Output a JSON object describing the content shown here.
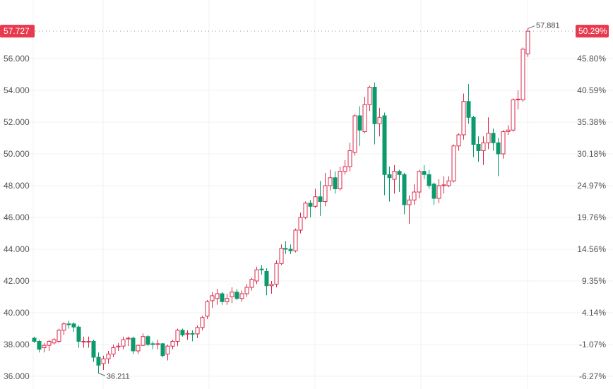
{
  "chart_data": {
    "type": "candlestick",
    "title": "",
    "colors": {
      "up": "#d9284b",
      "down": "#0b9a6c",
      "grid": "#f0f0f0",
      "last_price_tag": "#e8394f"
    },
    "up_style": "hollow",
    "down_style": "filled",
    "ylim": [
      36,
      58
    ],
    "grid": true,
    "left_ticks": [
      "36.000",
      "38.000",
      "40.000",
      "42.000",
      "44.000",
      "46.000",
      "48.000",
      "50.000",
      "52.000",
      "54.000",
      "56.000"
    ],
    "left_tick_values": [
      36,
      38,
      40,
      42,
      44,
      46,
      48,
      50,
      52,
      54,
      56
    ],
    "right_ticks": [
      "-6.27%",
      "-1.07%",
      "4.14%",
      "9.35%",
      "14.56%",
      "19.76%",
      "24.97%",
      "30.18%",
      "35.38%",
      "40.59%",
      "45.80%"
    ],
    "last_price": "57.727",
    "last_price_value": 57.727,
    "last_change": "50.29%",
    "high_label": "57.881",
    "low_label": "36.211",
    "high_value": 57.881,
    "low_value": 36.211,
    "candles_ohlc": [
      [
        38.4,
        38.5,
        38.1,
        38.2
      ],
      [
        38.2,
        38.3,
        37.5,
        37.7
      ],
      [
        37.8,
        38.1,
        37.5,
        37.95
      ],
      [
        37.95,
        38.3,
        37.6,
        38.2
      ],
      [
        38.1,
        38.4,
        38.0,
        38.3
      ],
      [
        38.2,
        39.0,
        38.1,
        38.9
      ],
      [
        38.9,
        39.4,
        38.6,
        39.3
      ],
      [
        39.3,
        39.5,
        39.0,
        39.25
      ],
      [
        39.3,
        39.4,
        38.8,
        39.1
      ],
      [
        39.1,
        39.2,
        37.8,
        38.2
      ],
      [
        38.15,
        38.5,
        37.8,
        38.2
      ],
      [
        38.15,
        38.5,
        37.8,
        38.2
      ],
      [
        38.2,
        38.3,
        36.9,
        37.2
      ],
      [
        37.2,
        37.5,
        36.211,
        36.7
      ],
      [
        36.8,
        37.3,
        36.4,
        37.1
      ],
      [
        37.1,
        37.6,
        36.8,
        37.4
      ],
      [
        37.4,
        38.0,
        37.2,
        37.8
      ],
      [
        37.85,
        38.1,
        37.6,
        37.9
      ],
      [
        37.9,
        38.5,
        37.7,
        38.3
      ],
      [
        38.35,
        38.5,
        37.9,
        38.4
      ],
      [
        38.4,
        38.5,
        37.4,
        37.6
      ],
      [
        37.6,
        38.0,
        37.4,
        37.95
      ],
      [
        37.95,
        38.7,
        37.9,
        38.5
      ],
      [
        38.5,
        38.6,
        37.9,
        38.0
      ],
      [
        38.05,
        38.2,
        37.7,
        38.0
      ],
      [
        38.0,
        38.3,
        37.7,
        38.05
      ],
      [
        38.05,
        38.1,
        37.2,
        37.3
      ],
      [
        37.4,
        38.0,
        37.0,
        37.9
      ],
      [
        37.9,
        38.3,
        37.7,
        38.2
      ],
      [
        38.2,
        39.0,
        37.9,
        38.9
      ],
      [
        38.9,
        39.0,
        38.5,
        38.6
      ],
      [
        38.65,
        38.9,
        38.3,
        38.7
      ],
      [
        38.7,
        38.9,
        38.2,
        38.65
      ],
      [
        38.67,
        39.2,
        38.4,
        39.07
      ],
      [
        39.07,
        39.8,
        38.9,
        39.7
      ],
      [
        39.78,
        40.8,
        39.6,
        40.7
      ],
      [
        40.76,
        41.3,
        40.3,
        41.07
      ],
      [
        40.9,
        41.5,
        40.5,
        41.2
      ],
      [
        41.2,
        41.3,
        40.5,
        40.7
      ],
      [
        40.7,
        41.2,
        40.5,
        40.9
      ],
      [
        41.0,
        41.6,
        40.6,
        41.3
      ],
      [
        41.3,
        41.5,
        40.8,
        40.9
      ],
      [
        40.9,
        41.4,
        40.7,
        41.2
      ],
      [
        41.2,
        41.8,
        41.0,
        41.6
      ],
      [
        41.6,
        42.2,
        41.4,
        42.1
      ],
      [
        42.0,
        42.9,
        41.8,
        42.7
      ],
      [
        42.75,
        43.0,
        42.4,
        42.7
      ],
      [
        42.6,
        42.8,
        41.1,
        41.7
      ],
      [
        41.7,
        42.0,
        41.2,
        41.8
      ],
      [
        41.8,
        43.3,
        41.6,
        43.1
      ],
      [
        43.1,
        44.3,
        43.0,
        44.05
      ],
      [
        44.05,
        44.5,
        43.7,
        44.0
      ],
      [
        44.0,
        44.3,
        43.7,
        43.9
      ],
      [
        43.9,
        45.3,
        43.8,
        45.2
      ],
      [
        45.2,
        46.3,
        45.0,
        46.0
      ],
      [
        46.0,
        47.0,
        45.9,
        46.9
      ],
      [
        46.9,
        47.1,
        46.0,
        46.7
      ],
      [
        46.7,
        47.8,
        46.6,
        47.3
      ],
      [
        47.3,
        48.3,
        46.1,
        47.0
      ],
      [
        47.0,
        48.8,
        46.7,
        48.0
      ],
      [
        48.0,
        49.0,
        47.7,
        48.5
      ],
      [
        48.5,
        48.9,
        47.5,
        47.8
      ],
      [
        47.8,
        49.2,
        47.7,
        48.9
      ],
      [
        48.9,
        49.6,
        48.7,
        49.2
      ],
      [
        49.2,
        50.7,
        48.9,
        50.2
      ],
      [
        50.1,
        52.5,
        49.9,
        52.4
      ],
      [
        52.4,
        53.0,
        50.5,
        51.5
      ],
      [
        51.4,
        53.6,
        51.3,
        53.1
      ],
      [
        53.1,
        54.3,
        52.7,
        54.2
      ],
      [
        54.2,
        54.5,
        50.6,
        51.9
      ],
      [
        51.9,
        52.9,
        51.1,
        52.3
      ],
      [
        52.4,
        52.6,
        47.4,
        48.7
      ],
      [
        48.7,
        49.2,
        47.0,
        48.5
      ],
      [
        48.4,
        49.3,
        47.5,
        48.9
      ],
      [
        48.9,
        49.0,
        47.6,
        48.7
      ],
      [
        48.7,
        48.8,
        46.2,
        46.8
      ],
      [
        46.8,
        47.4,
        45.6,
        47.1
      ],
      [
        47.1,
        48.1,
        46.8,
        47.6
      ],
      [
        47.6,
        49.0,
        47.2,
        48.9
      ],
      [
        48.9,
        49.3,
        48.4,
        48.7
      ],
      [
        48.7,
        49.0,
        47.8,
        48.0
      ],
      [
        48.1,
        48.2,
        46.8,
        47.2
      ],
      [
        47.2,
        48.4,
        46.9,
        48.0
      ],
      [
        48.0,
        48.6,
        47.5,
        48.05
      ],
      [
        48.0,
        48.6,
        47.9,
        48.3
      ],
      [
        48.3,
        50.6,
        48.2,
        50.5
      ],
      [
        50.5,
        51.3,
        50.2,
        51.2
      ],
      [
        51.2,
        53.8,
        50.9,
        53.3
      ],
      [
        53.3,
        54.4,
        51.9,
        52.3
      ],
      [
        52.3,
        52.4,
        49.8,
        50.6
      ],
      [
        50.6,
        51.1,
        49.5,
        50.2
      ],
      [
        50.2,
        51.1,
        49.3,
        50.7
      ],
      [
        50.7,
        52.3,
        50.3,
        51.3
      ],
      [
        51.3,
        51.6,
        50.2,
        50.7
      ],
      [
        50.7,
        51.0,
        48.6,
        50.0
      ],
      [
        50.0,
        51.5,
        49.7,
        51.4
      ],
      [
        51.4,
        51.8,
        51.2,
        51.5
      ],
      [
        51.5,
        53.5,
        51.4,
        53.4
      ],
      [
        53.4,
        54.0,
        52.8,
        53.45
      ],
      [
        53.4,
        56.7,
        53.3,
        56.6
      ],
      [
        56.3,
        57.881,
        56.1,
        57.727
      ]
    ]
  }
}
